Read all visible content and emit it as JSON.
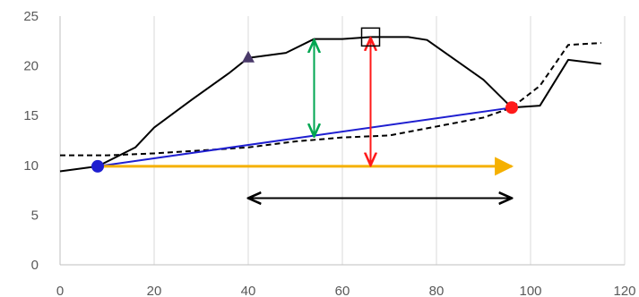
{
  "chart_data": {
    "type": "line",
    "title": "",
    "xlabel": "",
    "ylabel": "",
    "xlim": [
      0,
      120
    ],
    "ylim": [
      0,
      25
    ],
    "x_ticks": [
      0,
      20,
      40,
      60,
      80,
      100,
      120
    ],
    "y_ticks": [
      0,
      5,
      10,
      15,
      20,
      25
    ],
    "x_tick_labels": [
      "0",
      "20",
      "40",
      "60",
      "80",
      "100",
      "120"
    ],
    "y_tick_labels": [
      "0",
      "5",
      "10",
      "15",
      "20",
      "25"
    ],
    "grid": "vertical",
    "legend": "none",
    "series": [
      {
        "style": "solid",
        "color": "#000000",
        "x": [
          0,
          8,
          16,
          20,
          28,
          36,
          40,
          48,
          54,
          60,
          66,
          74,
          78,
          84,
          90,
          96,
          102,
          108,
          115
        ],
        "y": [
          9.4,
          9.9,
          11.8,
          13.8,
          16.6,
          19.3,
          20.8,
          21.3,
          22.7,
          22.7,
          22.9,
          22.9,
          22.6,
          20.6,
          18.6,
          15.8,
          16.0,
          20.6,
          20.2
        ]
      },
      {
        "style": "dashed",
        "color": "#000000",
        "x": [
          0,
          10,
          20,
          30,
          40,
          50,
          60,
          70,
          80,
          90,
          96,
          102,
          108,
          115
        ],
        "y": [
          11.0,
          11.0,
          11.2,
          11.5,
          11.8,
          12.4,
          12.8,
          13.0,
          13.9,
          14.8,
          15.8,
          18.0,
          22.1,
          22.3
        ]
      },
      {
        "style": "solid",
        "color": "#1f1fd0",
        "x": [
          8,
          96
        ],
        "y": [
          9.9,
          15.8
        ]
      }
    ],
    "markers": [
      {
        "shape": "circle",
        "color": "#1f1fd0",
        "x": 8,
        "y": 9.9
      },
      {
        "shape": "circle",
        "color": "#ff1a1a",
        "x": 96,
        "y": 15.8
      },
      {
        "shape": "triangle",
        "color": "#4a3a6a",
        "x": 40,
        "y": 20.8
      },
      {
        "shape": "square",
        "color": "#000000",
        "x": 66,
        "y": 22.9
      }
    ],
    "arrows": [
      {
        "color": "#f5b000",
        "style": "single",
        "x1": 8,
        "y1": 9.9,
        "x2": 96,
        "y2": 9.9
      },
      {
        "color": "#000000",
        "style": "double",
        "x1": 40,
        "y1": 6.7,
        "x2": 96,
        "y2": 6.7
      },
      {
        "color": "#00a651",
        "style": "double",
        "x1": 54,
        "y1": 22.6,
        "x2": 54,
        "y2": 12.9
      },
      {
        "color": "#ff1a1a",
        "style": "double",
        "x1": 66,
        "y1": 22.8,
        "x2": 66,
        "y2": 10.0
      }
    ]
  }
}
